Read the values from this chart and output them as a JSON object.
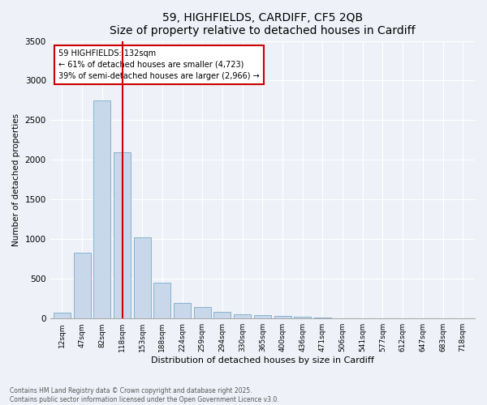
{
  "title1": "59, HIGHFIELDS, CARDIFF, CF5 2QB",
  "title2": "Size of property relative to detached houses in Cardiff",
  "xlabel": "Distribution of detached houses by size in Cardiff",
  "ylabel": "Number of detached properties",
  "categories": [
    "12sqm",
    "47sqm",
    "82sqm",
    "118sqm",
    "153sqm",
    "188sqm",
    "224sqm",
    "259sqm",
    "294sqm",
    "330sqm",
    "365sqm",
    "400sqm",
    "436sqm",
    "471sqm",
    "506sqm",
    "541sqm",
    "577sqm",
    "612sqm",
    "647sqm",
    "683sqm",
    "718sqm"
  ],
  "values": [
    70,
    830,
    2750,
    2100,
    1020,
    450,
    200,
    150,
    80,
    55,
    45,
    30,
    20,
    10,
    5,
    3,
    2,
    1,
    1,
    0,
    0
  ],
  "bar_color": "#c8d8ea",
  "bar_edge_color": "#7aaac8",
  "vertical_line_x": 3,
  "vertical_line_color": "#cc0000",
  "annotation_text": "59 HIGHFIELDS: 132sqm\n← 61% of detached houses are smaller (4,723)\n39% of semi-detached houses are larger (2,966) →",
  "annotation_box_color": "#ffffff",
  "annotation_box_edge_color": "#cc0000",
  "ylim": [
    0,
    3500
  ],
  "yticks": [
    0,
    500,
    1000,
    1500,
    2000,
    2500,
    3000,
    3500
  ],
  "footer1": "Contains HM Land Registry data © Crown copyright and database right 2025.",
  "footer2": "Contains public sector information licensed under the Open Government Licence v3.0.",
  "background_color": "#eef2f8",
  "plot_bg_color": "#eef2f8",
  "grid_color": "#ffffff",
  "title_fontsize": 10,
  "xlabel_fontsize": 8,
  "ylabel_fontsize": 7.5,
  "xtick_fontsize": 6.5,
  "ytick_fontsize": 7.5
}
